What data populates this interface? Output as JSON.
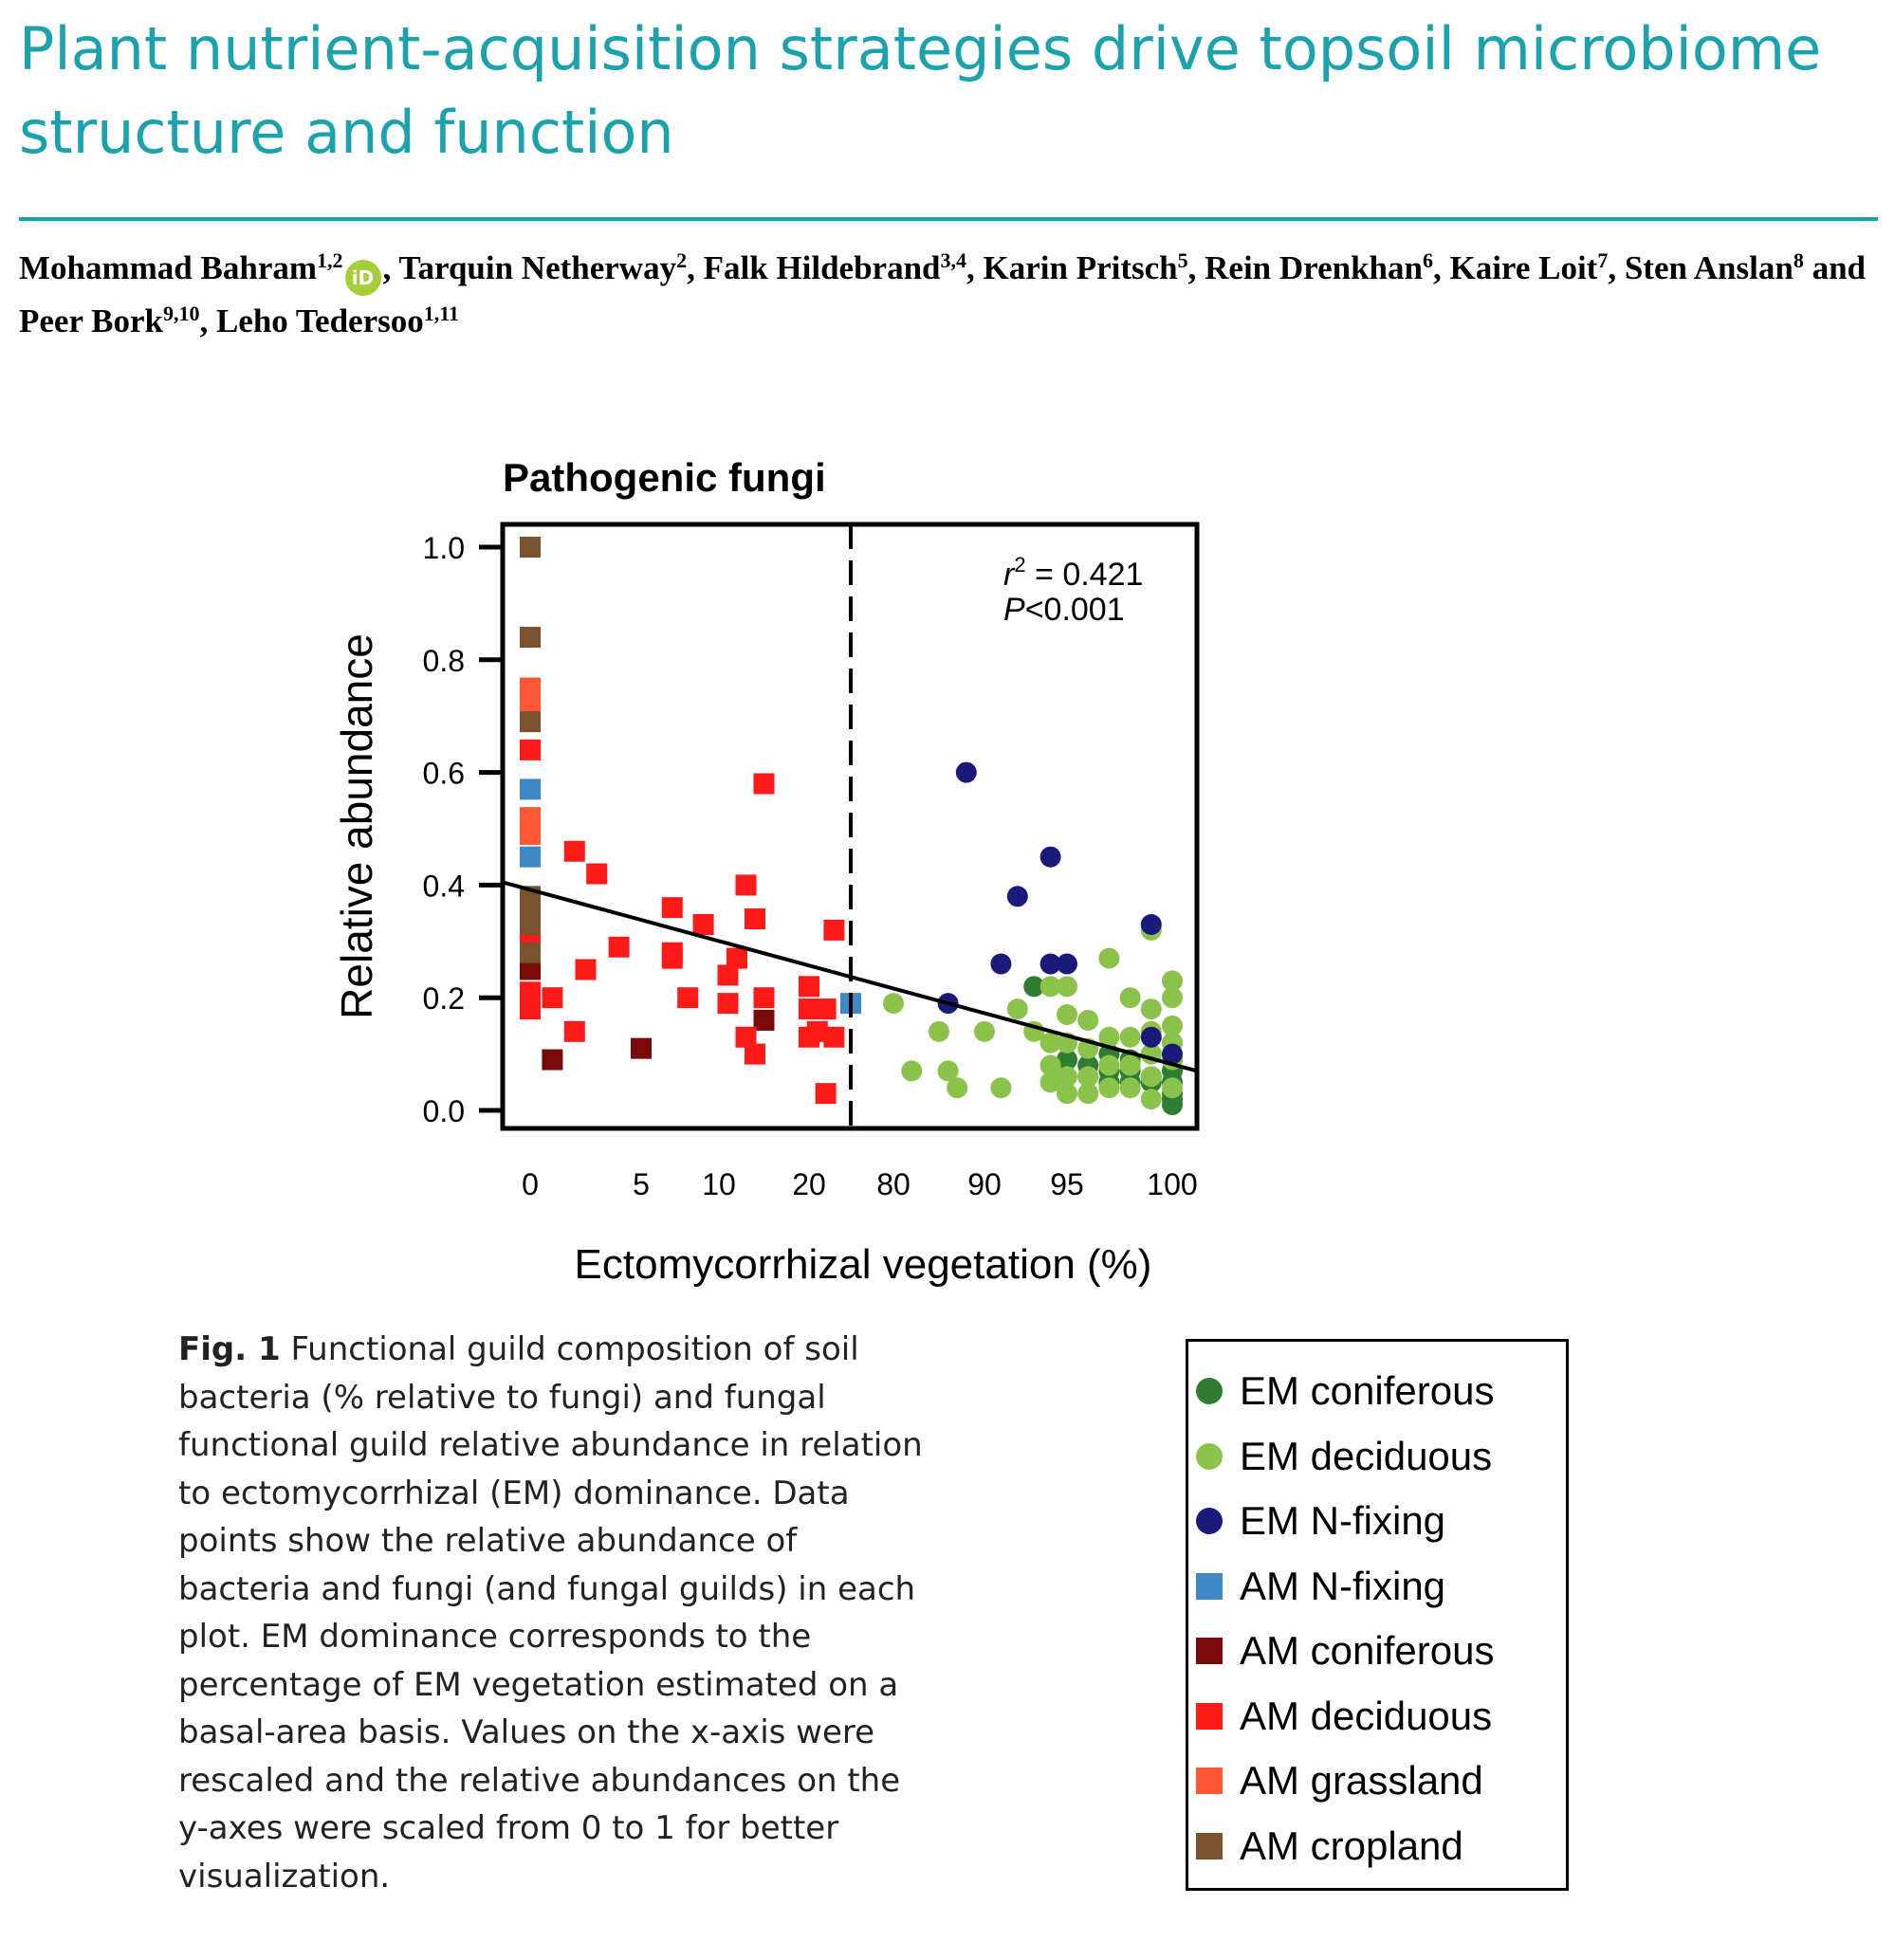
{
  "paper": {
    "title": "Plant nutrient-acquisition strategies drive topsoil microbiome structure and function",
    "authors": [
      {
        "name": "Mohammad Bahram",
        "aff": "1,2",
        "orcid": true
      },
      {
        "name": "Tarquin Netherway",
        "aff": "2"
      },
      {
        "name": "Falk Hildebrand",
        "aff": "3,4"
      },
      {
        "name": "Karin Pritsch",
        "aff": "5"
      },
      {
        "name": "Rein Drenkhan",
        "aff": "6"
      },
      {
        "name": "Kaire Loit",
        "aff": "7"
      },
      {
        "name": "Sten Anslan",
        "aff": "8"
      },
      {
        "name": "Peer Bork",
        "aff": "9,10"
      },
      {
        "name": "Leho Tedersoo",
        "aff": "1,11"
      }
    ],
    "orcid_label": "iD"
  },
  "caption": {
    "label": "Fig. 1",
    "text": "Functional guild composition of soil bacteria (% relative to fungi) and fungal functional guild relative abundance in relation to ectomycorrhizal (EM) dominance. Data points show the relative abundance of bacteria and fungi (and fungal guilds) in each plot. EM dominance corresponds to the percentage of EM vegetation estimated on a basal-area basis. Values on the x-axis were rescaled and the relative abundances on the y-axes were scaled from 0 to 1 for better visualization."
  },
  "chart_data": {
    "type": "scatter",
    "title": "Pathogenic fungi",
    "xlabel": "Ectomycorrhizal vegetation (%)",
    "ylabel": "Relative abundance",
    "ylim": [
      0,
      1
    ],
    "yticks": [
      "0.0",
      "0.2",
      "0.4",
      "0.6",
      "0.8",
      "1.0"
    ],
    "xticks_left": [
      "0",
      "5",
      "10",
      "20"
    ],
    "xticks_right": [
      "80",
      "90",
      "95",
      "100"
    ],
    "x_scale": "piecewise rescaled",
    "divider": "dashed vertical line between 20 and 80",
    "annotation": {
      "r2_label": "r",
      "r2_sup": "2",
      "r2_value": " = 0.421",
      "p_label": "P",
      "p_value": "<0.001"
    },
    "fit_line": {
      "y_at_left": 0.405,
      "y_at_right": 0.07
    },
    "legend_position": "bottom-right, outside plot",
    "series": [
      {
        "name": "EM coniferous",
        "marker": "circle",
        "color": "#2e7d32",
        "points": [
          [
            93,
            0.22
          ],
          [
            95,
            0.09
          ],
          [
            96,
            0.08
          ],
          [
            96,
            0.06
          ],
          [
            97,
            0.1
          ],
          [
            97,
            0.05
          ],
          [
            98,
            0.09
          ],
          [
            98,
            0.07
          ],
          [
            99,
            0.06
          ],
          [
            99,
            0.1
          ],
          [
            99,
            0.05
          ],
          [
            100,
            0.12
          ],
          [
            100,
            0.07
          ],
          [
            100,
            0.05
          ],
          [
            100,
            0.03
          ],
          [
            100,
            0.02
          ],
          [
            100,
            0.01
          ],
          [
            100,
            0.09
          ],
          [
            98,
            0.05
          ],
          [
            97,
            0.07
          ]
        ]
      },
      {
        "name": "EM deciduous",
        "marker": "circle",
        "color": "#8bc34a",
        "points": [
          [
            80,
            0.19
          ],
          [
            82,
            0.07
          ],
          [
            85,
            0.14
          ],
          [
            86,
            0.07
          ],
          [
            87,
            0.04
          ],
          [
            90,
            0.14
          ],
          [
            91,
            0.04
          ],
          [
            92,
            0.18
          ],
          [
            93,
            0.14
          ],
          [
            94,
            0.22
          ],
          [
            94,
            0.12
          ],
          [
            94,
            0.08
          ],
          [
            94,
            0.05
          ],
          [
            95,
            0.22
          ],
          [
            95,
            0.17
          ],
          [
            95,
            0.12
          ],
          [
            95,
            0.06
          ],
          [
            95,
            0.03
          ],
          [
            96,
            0.16
          ],
          [
            96,
            0.11
          ],
          [
            96,
            0.06
          ],
          [
            96,
            0.03
          ],
          [
            97,
            0.27
          ],
          [
            97,
            0.13
          ],
          [
            97,
            0.08
          ],
          [
            97,
            0.04
          ],
          [
            98,
            0.2
          ],
          [
            98,
            0.13
          ],
          [
            98,
            0.08
          ],
          [
            98,
            0.04
          ],
          [
            99,
            0.32
          ],
          [
            99,
            0.18
          ],
          [
            99,
            0.14
          ],
          [
            99,
            0.1
          ],
          [
            99,
            0.06
          ],
          [
            99,
            0.02
          ],
          [
            100,
            0.23
          ],
          [
            100,
            0.2
          ],
          [
            100,
            0.15
          ],
          [
            100,
            0.12
          ],
          [
            100,
            0.09
          ],
          [
            100,
            0.04
          ]
        ]
      },
      {
        "name": "EM N-fixing",
        "marker": "circle",
        "color": "#1a1a7a",
        "points": [
          [
            88,
            0.6
          ],
          [
            94,
            0.45
          ],
          [
            92,
            0.38
          ],
          [
            99,
            0.33
          ],
          [
            91,
            0.26
          ],
          [
            94,
            0.26
          ],
          [
            95,
            0.26
          ],
          [
            86,
            0.19
          ],
          [
            99,
            0.13
          ],
          [
            100,
            0.1
          ]
        ]
      },
      {
        "name": "AM N-fixing",
        "marker": "square",
        "color": "#3f88c5",
        "points": [
          [
            0,
            0.57
          ],
          [
            0,
            0.45
          ],
          [
            25,
            0.19
          ]
        ]
      },
      {
        "name": "AM coniferous",
        "marker": "square",
        "color": "#7a0a0a",
        "points": [
          [
            0,
            0.25
          ],
          [
            1,
            0.09
          ],
          [
            5,
            0.11
          ],
          [
            15,
            0.16
          ]
        ]
      },
      {
        "name": "AM deciduous",
        "marker": "square",
        "color": "#ff1a1a",
        "points": [
          [
            0,
            0.64
          ],
          [
            0,
            0.3
          ],
          [
            0,
            0.21
          ],
          [
            0,
            0.18
          ],
          [
            1,
            0.2
          ],
          [
            2,
            0.46
          ],
          [
            2,
            0.14
          ],
          [
            2.5,
            0.25
          ],
          [
            3,
            0.42
          ],
          [
            4,
            0.29
          ],
          [
            7,
            0.36
          ],
          [
            7,
            0.27
          ],
          [
            7,
            0.28
          ],
          [
            8,
            0.2
          ],
          [
            9,
            0.33
          ],
          [
            11,
            0.19
          ],
          [
            11,
            0.24
          ],
          [
            12,
            0.27
          ],
          [
            13,
            0.4
          ],
          [
            13,
            0.13
          ],
          [
            14,
            0.34
          ],
          [
            14,
            0.1
          ],
          [
            15,
            0.58
          ],
          [
            15,
            0.2
          ],
          [
            20,
            0.22
          ],
          [
            20,
            0.18
          ],
          [
            20,
            0.13
          ],
          [
            21,
            0.14
          ],
          [
            22,
            0.18
          ],
          [
            22,
            0.03
          ],
          [
            23,
            0.32
          ],
          [
            23,
            0.13
          ]
        ]
      },
      {
        "name": "AM grassland",
        "marker": "square",
        "color": "#ff5733",
        "points": [
          [
            0,
            0.75
          ],
          [
            0,
            0.72
          ],
          [
            0,
            0.52
          ],
          [
            0,
            0.49
          ]
        ]
      },
      {
        "name": "AM cropland",
        "marker": "square",
        "color": "#7a5230",
        "points": [
          [
            0,
            1.0
          ],
          [
            0,
            0.84
          ],
          [
            0,
            0.69
          ],
          [
            0,
            0.38
          ],
          [
            0,
            0.35
          ],
          [
            0,
            0.33
          ],
          [
            0,
            0.28
          ]
        ]
      }
    ]
  }
}
